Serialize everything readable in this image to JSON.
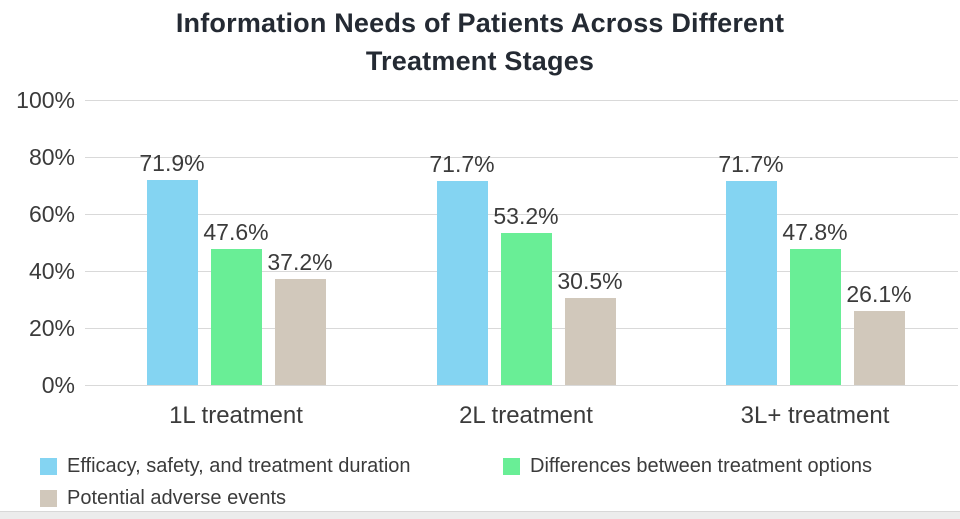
{
  "title": {
    "line1": "Information Needs of Patients Across Different",
    "line2": "Treatment Stages"
  },
  "chart_data": {
    "type": "bar",
    "title": "Information Needs of Patients Across Different Treatment Stages",
    "categories": [
      "1L treatment",
      "2L treatment",
      "3L+ treatment"
    ],
    "series": [
      {
        "name": "Efficacy, safety, and treatment duration",
        "color": "#84D4F2",
        "values": [
          71.9,
          71.7,
          71.7
        ]
      },
      {
        "name": "Differences between treatment options",
        "color": "#69EE96",
        "values": [
          47.6,
          53.2,
          47.8
        ]
      },
      {
        "name": "Potential adverse events",
        "color": "#D1C8BB",
        "values": [
          37.2,
          30.5,
          26.1
        ]
      }
    ],
    "value_label_format": "{value}%",
    "ylabel": "",
    "xlabel": "",
    "ylim": [
      0,
      100
    ],
    "y_ticks": [
      "0%",
      "20%",
      "40%",
      "60%",
      "80%",
      "100%"
    ],
    "y_tick_values": [
      0,
      20,
      40,
      60,
      80,
      100
    ],
    "grid": "horizontal",
    "legend_position": "bottom"
  },
  "colors": {
    "title_text": "#242A33",
    "axis_text": "#3B3B3B",
    "gridline": "#D9D9D9",
    "page_strip": "#ECECEC"
  }
}
